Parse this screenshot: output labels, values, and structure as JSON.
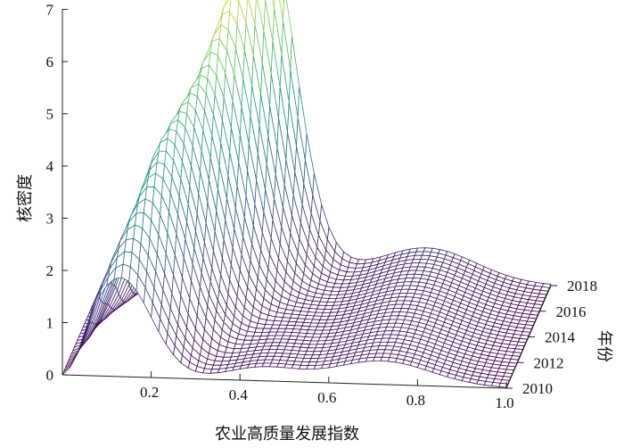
{
  "chart_data": {
    "type": "surface",
    "title": "",
    "xlabel": "农业高质量发展指数",
    "ylabel": "年份",
    "zlabel": "核密度",
    "x_ticks": [
      "0.2",
      "0.4",
      "0.6",
      "0.8",
      "1.0"
    ],
    "y_ticks": [
      "2010",
      "2012",
      "2014",
      "2016",
      "2018"
    ],
    "z_ticks": [
      "0",
      "1",
      "2",
      "3",
      "4",
      "5",
      "6",
      "7"
    ],
    "xlim": [
      0.0,
      1.0
    ],
    "ylim": [
      2010,
      2018
    ],
    "zlim": [
      0,
      7
    ],
    "colormap": "viridis",
    "series": [
      {
        "year": 2010,
        "peak_x": 0.13,
        "peak_density": 1.9
      },
      {
        "year": 2011,
        "peak_x": 0.15,
        "peak_density": 2.6
      },
      {
        "year": 2012,
        "peak_x": 0.18,
        "peak_density": 3.3
      },
      {
        "year": 2013,
        "peak_x": 0.2,
        "peak_density": 3.9
      },
      {
        "year": 2014,
        "peak_x": 0.23,
        "peak_density": 4.3
      },
      {
        "year": 2015,
        "peak_x": 0.26,
        "peak_density": 4.7
      },
      {
        "year": 2016,
        "peak_x": 0.29,
        "peak_density": 5.4
      },
      {
        "year": 2017,
        "peak_x": 0.32,
        "peak_density": 6.2
      },
      {
        "year": 2018,
        "peak_x": 0.35,
        "peak_density": 6.9
      }
    ]
  }
}
